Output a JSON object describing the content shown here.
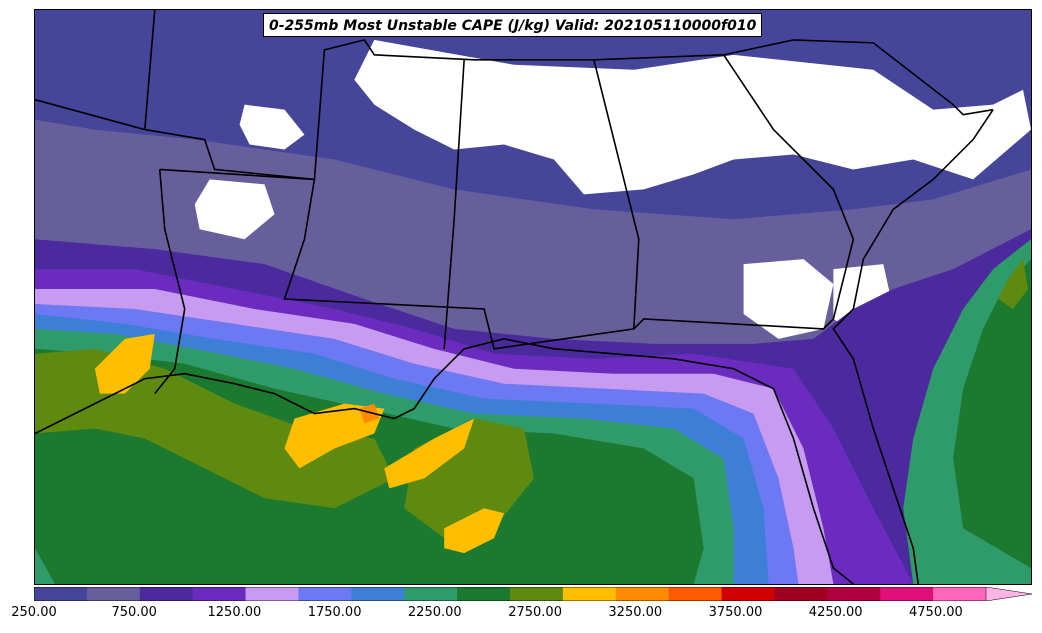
{
  "title": "0-255mb Most Unstable CAPE (J/kg) Valid: 202105110000f010",
  "colorbar": {
    "min": 250,
    "max": 5000,
    "step": 250,
    "extend": "max",
    "tick_labels": [
      "250.00",
      "750.00",
      "1250.00",
      "1750.00",
      "2250.00",
      "2750.00",
      "3250.00",
      "3750.00",
      "4250.00",
      "4750.00"
    ],
    "colors": [
      "#45459a",
      "#675e9c",
      "#4b2a9e",
      "#6b2bbf",
      "#c79bf0",
      "#6c79f3",
      "#3d7ed6",
      "#2f9a6a",
      "#1b7a2f",
      "#5e8a10",
      "#ffbe00",
      "#ff8c00",
      "#ff5a00",
      "#d30000",
      "#a00020",
      "#b00040",
      "#e0107a",
      "#ff66bb"
    ],
    "extend_color": "#ffb3e6"
  },
  "map": {
    "region": "Southeastern United States and Gulf of Mexico",
    "field": "Most Unstable CAPE",
    "units": "J/kg",
    "no_data_color": "#ffffff",
    "boundary_color": "#000000"
  }
}
